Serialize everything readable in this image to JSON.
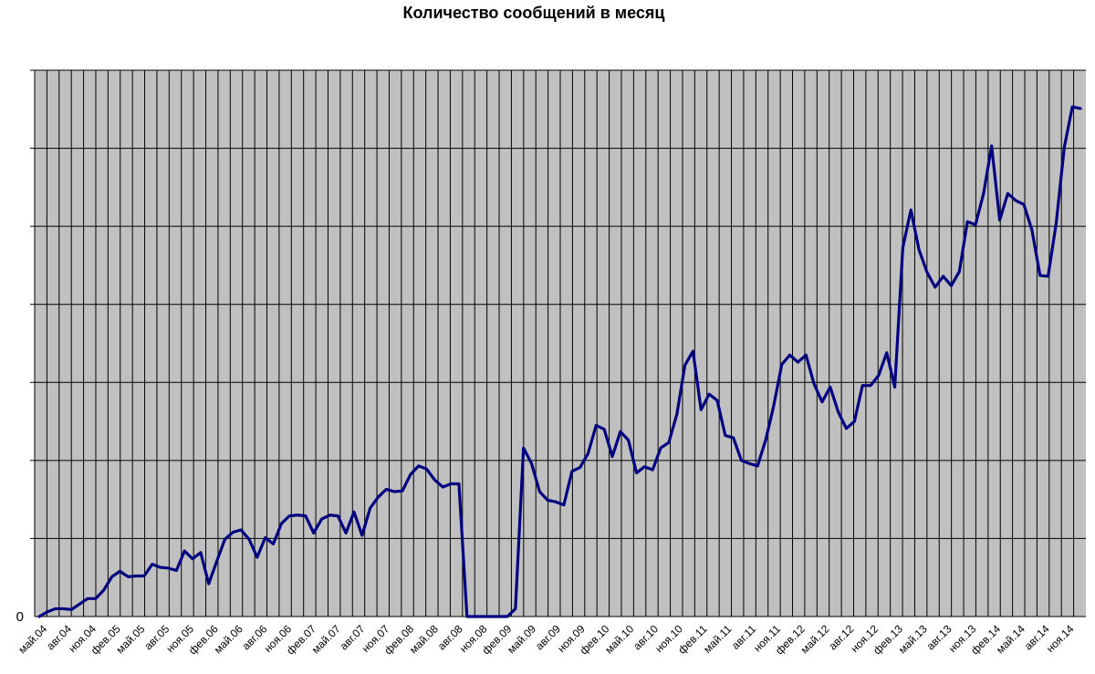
{
  "chart_data": {
    "type": "line",
    "title": "Количество сообщений в месяц",
    "xlabel": "",
    "ylabel": "",
    "y_tick_labels": [
      "0"
    ],
    "y_gridline_count": 7,
    "grid": true,
    "plot_background": "#c0c0c0",
    "line_color": "#000080",
    "gridline_color": "#000000",
    "legend": "none",
    "x_tick_labels": [
      "май.04",
      "авг.04",
      "ноя.04",
      "фев.05",
      "май.05",
      "авг.05",
      "ноя.05",
      "фев.06",
      "май.06",
      "авг.06",
      "ноя.06",
      "фев.07",
      "май.07",
      "авг.07",
      "ноя.07",
      "фев.08",
      "май.08",
      "авг.08",
      "ноя.08",
      "фев.09",
      "май.09",
      "авг.09",
      "ноя.09",
      "фев.10",
      "май.10",
      "авг.10",
      "ноя.10",
      "фев.11",
      "май.11",
      "авг.11",
      "ноя.11",
      "фев.12",
      "май.12",
      "авг.12",
      "ноя.12",
      "фев.13",
      "май.13",
      "авг.13",
      "ноя.13",
      "фев.14",
      "май.14",
      "авг.14",
      "ноя.14"
    ],
    "ylim": [
      0,
      7
    ],
    "series": [
      {
        "values": [
          0,
          0.06,
          0.1,
          0.1,
          0.09,
          0.16,
          0.23,
          0.23,
          0.34,
          0.51,
          0.58,
          0.51,
          0.52,
          0.52,
          0.67,
          0.63,
          0.62,
          0.59,
          0.84,
          0.74,
          0.82,
          0.42,
          0.71,
          0.99,
          1.08,
          1.11,
          0.99,
          0.76,
          1.01,
          0.93,
          1.19,
          1.29,
          1.3,
          1.29,
          1.07,
          1.25,
          1.3,
          1.29,
          1.07,
          1.34,
          1.04,
          1.39,
          1.53,
          1.63,
          1.6,
          1.61,
          1.82,
          1.93,
          1.89,
          1.75,
          1.66,
          1.7,
          1.7,
          0,
          0,
          0,
          0,
          0,
          0,
          0.1,
          2.16,
          1.96,
          1.6,
          1.49,
          1.47,
          1.43,
          1.86,
          1.91,
          2.09,
          2.45,
          2.4,
          2.05,
          2.37,
          2.26,
          1.84,
          1.92,
          1.88,
          2.16,
          2.23,
          2.59,
          3.22,
          3.4,
          2.65,
          2.85,
          2.77,
          2.32,
          2.29,
          2.0,
          1.96,
          1.93,
          2.26,
          2.7,
          3.23,
          3.35,
          3.26,
          3.35,
          2.98,
          2.75,
          2.94,
          2.62,
          2.41,
          2.5,
          2.96,
          2.96,
          3.09,
          3.38,
          2.94,
          4.73,
          5.21,
          4.7,
          4.41,
          4.22,
          4.36,
          4.24,
          4.42,
          5.06,
          5.02,
          5.42,
          6.03,
          5.08,
          5.42,
          5.33,
          5.28,
          4.95,
          4.37,
          4.36,
          5.04,
          6.01,
          6.53,
          6.51
        ]
      }
    ]
  }
}
